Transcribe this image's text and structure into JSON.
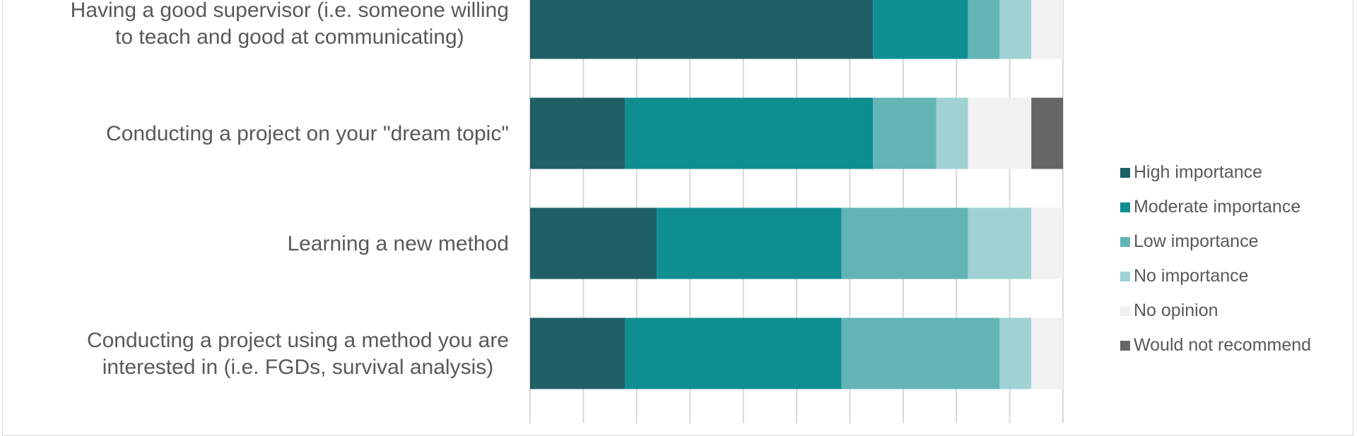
{
  "chart_data": {
    "type": "bar",
    "orientation": "horizontal",
    "stacked": "percent",
    "categories": [
      [
        "Having a good supervisor (i.e. someone willing",
        "to teach and good at communicating)"
      ],
      [
        "Conducting a project on your \"dream topic\""
      ],
      [
        "Learning a new method"
      ],
      [
        "Conducting a project using a method you are",
        "interested in (i.e. FGDs, survival analysis)"
      ]
    ],
    "series": [
      {
        "name": "High importance",
        "color": "#1f6066",
        "values": [
          65,
          18,
          24,
          18
        ]
      },
      {
        "name": "Moderate importance",
        "color": "#0f8e92",
        "values": [
          18,
          47,
          35,
          41
        ]
      },
      {
        "name": "Low importance",
        "color": "#62b5b4",
        "values": [
          6,
          12,
          24,
          30
        ]
      },
      {
        "name": "No importance",
        "color": "#a0d2d3",
        "values": [
          6,
          6,
          12,
          6
        ]
      },
      {
        "name": "No opinion",
        "color": "#f1f1f1",
        "values": [
          6,
          12,
          6,
          6
        ]
      },
      {
        "name": "Would not recommend",
        "color": "#666666",
        "values": [
          0,
          6,
          0,
          0
        ]
      }
    ],
    "xlim": [
      0,
      100
    ],
    "grid": true,
    "legend": "right"
  }
}
